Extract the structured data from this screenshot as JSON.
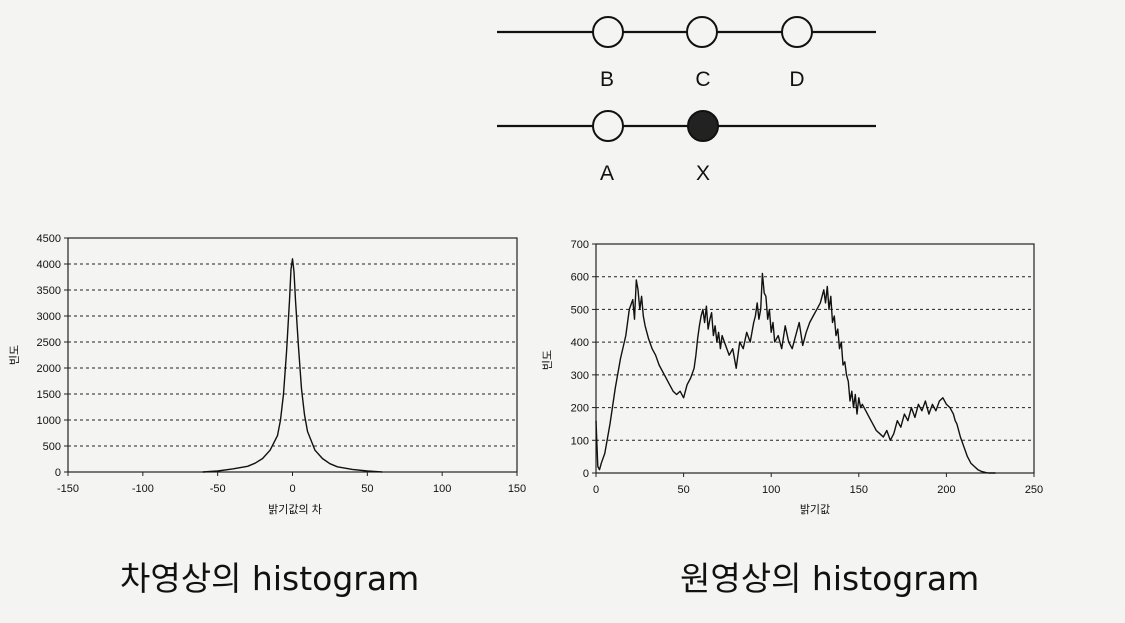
{
  "pixel_diagram": {
    "nodes": [
      {
        "label": "B",
        "filled": false
      },
      {
        "label": "C",
        "filled": false
      },
      {
        "label": "D",
        "filled": false
      },
      {
        "label": "A",
        "filled": false
      },
      {
        "label": "X",
        "filled": true
      }
    ]
  },
  "captions": {
    "left": "차영상의 histogram",
    "right": "원영상의 histogram"
  },
  "chart_data": [
    {
      "type": "line",
      "xlabel": "밝기값의 차",
      "ylabel": "빈도",
      "xlim": [
        -150,
        150
      ],
      "ylim": [
        0,
        4500
      ],
      "x_ticks": [
        -150,
        -100,
        -50,
        0,
        50,
        100,
        150
      ],
      "y_ticks": [
        0,
        500,
        1000,
        1500,
        2000,
        2500,
        3000,
        3500,
        4000,
        4500
      ],
      "x_tick_labels": [
        "-150",
        "-100",
        "-50",
        "0",
        "50",
        "100",
        "150"
      ],
      "y_tick_labels": [
        "0",
        "500",
        "1000",
        "1500",
        "2000",
        "2500",
        "3000",
        "3500",
        "4000",
        "4500"
      ],
      "grid": "horizontal dashed",
      "series": [
        {
          "x": [
            -60,
            -50,
            -40,
            -30,
            -25,
            -20,
            -15,
            -10,
            -8,
            -6,
            -4,
            -2,
            -1,
            0,
            1,
            2,
            4,
            6,
            8,
            10,
            15,
            20,
            25,
            30,
            40,
            50,
            60
          ],
          "values": [
            0,
            20,
            60,
            110,
            170,
            260,
            420,
            700,
            1000,
            1500,
            2300,
            3300,
            3900,
            4100,
            3850,
            3300,
            2400,
            1600,
            1100,
            780,
            420,
            260,
            160,
            100,
            50,
            20,
            0
          ]
        }
      ]
    },
    {
      "type": "line",
      "xlabel": "밝기값",
      "ylabel": "빈도",
      "xlim": [
        0,
        250
      ],
      "ylim": [
        0,
        700
      ],
      "x_ticks": [
        0,
        50,
        100,
        150,
        200,
        250
      ],
      "y_ticks": [
        0,
        100,
        200,
        300,
        400,
        500,
        600,
        700
      ],
      "x_tick_labels": [
        "0",
        "50",
        "100",
        "150",
        "200",
        "250"
      ],
      "y_tick_labels": [
        "0",
        "100",
        "200",
        "300",
        "400",
        "500",
        "600",
        "700"
      ],
      "grid": "horizontal dashed",
      "series": [
        {
          "x": [
            0,
            1,
            2,
            3,
            5,
            8,
            11,
            14,
            17,
            19,
            21,
            22,
            23,
            24,
            25,
            26,
            27,
            28,
            30,
            32,
            34,
            36,
            38,
            40,
            42,
            44,
            46,
            48,
            50,
            52,
            54,
            56,
            57,
            58,
            59,
            60,
            61,
            62,
            63,
            64,
            65,
            66,
            67,
            68,
            69,
            70,
            71,
            72,
            74,
            76,
            78,
            80,
            82,
            84,
            86,
            88,
            90,
            91,
            92,
            93,
            94,
            95,
            96,
            97,
            98,
            99,
            100,
            101,
            102,
            104,
            106,
            108,
            110,
            112,
            114,
            116,
            118,
            120,
            122,
            124,
            126,
            128,
            130,
            131,
            132,
            133,
            134,
            135,
            136,
            137,
            138,
            139,
            140,
            141,
            142,
            143,
            144,
            145,
            146,
            147,
            148,
            149,
            150,
            151,
            152,
            154,
            156,
            158,
            160,
            162,
            164,
            166,
            168,
            170,
            172,
            174,
            176,
            178,
            180,
            182,
            184,
            186,
            188,
            190,
            192,
            194,
            196,
            198,
            200,
            202,
            204,
            205,
            206,
            208,
            210,
            212,
            214,
            216,
            218,
            220,
            222,
            224,
            226,
            228
          ],
          "values": [
            160,
            20,
            10,
            30,
            60,
            150,
            260,
            350,
            420,
            500,
            530,
            470,
            590,
            560,
            500,
            540,
            480,
            450,
            410,
            380,
            360,
            330,
            310,
            290,
            270,
            250,
            240,
            250,
            230,
            270,
            290,
            320,
            360,
            410,
            450,
            480,
            500,
            460,
            510,
            440,
            470,
            490,
            420,
            450,
            400,
            430,
            380,
            420,
            390,
            360,
            380,
            320,
            400,
            380,
            430,
            400,
            460,
            480,
            520,
            470,
            500,
            610,
            550,
            540,
            470,
            500,
            430,
            460,
            400,
            420,
            380,
            450,
            400,
            380,
            420,
            460,
            390,
            430,
            460,
            480,
            500,
            520,
            560,
            520,
            570,
            500,
            540,
            460,
            480,
            420,
            440,
            380,
            400,
            330,
            340,
            300,
            280,
            220,
            250,
            200,
            240,
            180,
            230,
            200,
            210,
            190,
            170,
            150,
            130,
            120,
            110,
            130,
            100,
            120,
            160,
            140,
            180,
            160,
            200,
            170,
            210,
            190,
            220,
            180,
            210,
            190,
            220,
            230,
            210,
            200,
            180,
            160,
            150,
            110,
            80,
            50,
            30,
            20,
            10,
            5,
            2,
            0,
            0,
            0
          ]
        }
      ]
    }
  ]
}
